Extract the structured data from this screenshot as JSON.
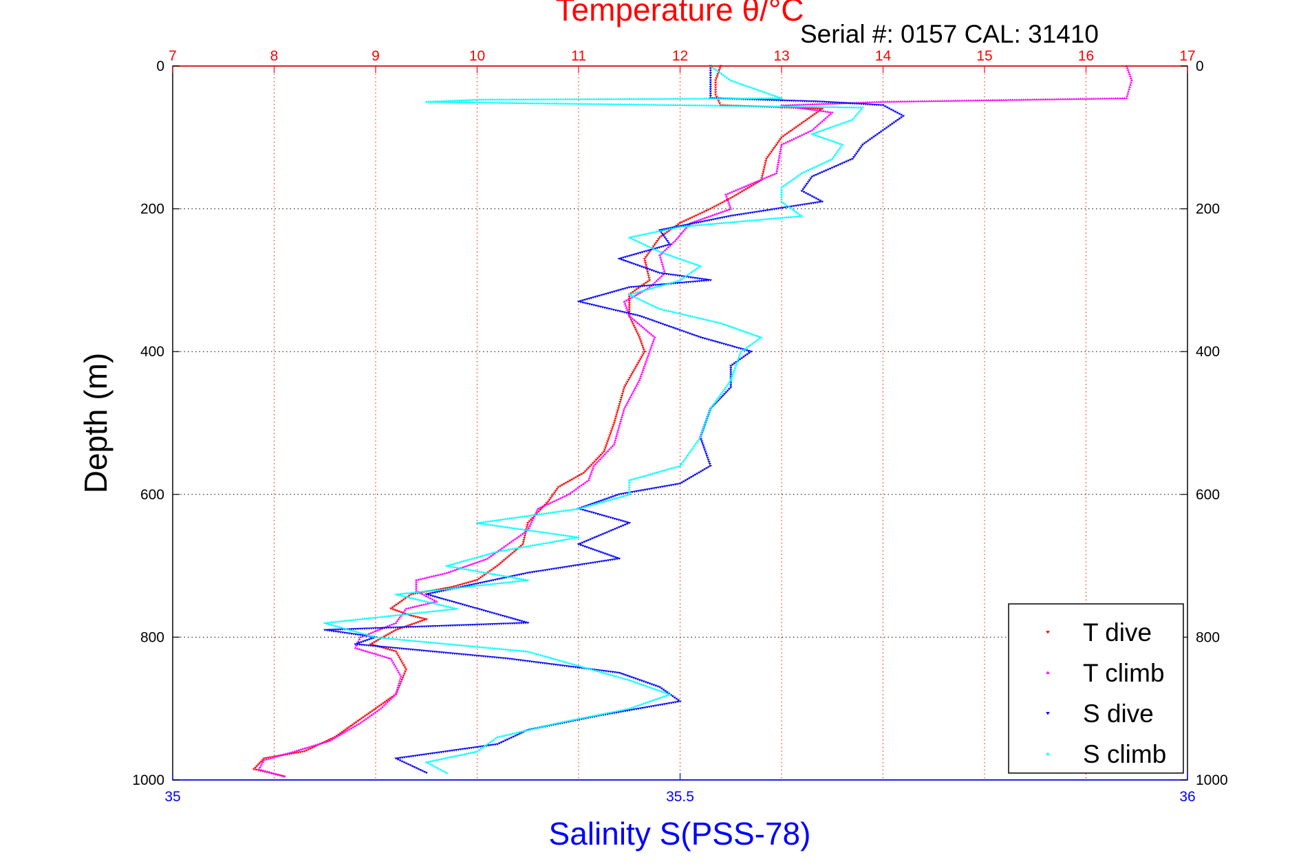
{
  "chart_data": {
    "type": "scatter",
    "title": "Temperature θ/°C",
    "subtitle": "Serial #: 0157  CAL: 31410",
    "ylabel": "Depth (m)",
    "xlabel": "Salinity S(PSS-78)",
    "y_axis": {
      "range": [
        0,
        1000
      ],
      "reversed": true,
      "ticks": [
        0,
        200,
        400,
        600,
        800,
        1000
      ],
      "tick_labels": [
        "0",
        "200",
        "400",
        "600",
        "800",
        "1000"
      ]
    },
    "temperature_axis": {
      "position": "top",
      "range": [
        7,
        17
      ],
      "ticks": [
        7,
        8,
        9,
        10,
        11,
        12,
        13,
        14,
        15,
        16,
        17
      ],
      "tick_labels": [
        "7",
        "8",
        "9",
        "10",
        "11",
        "12",
        "13",
        "14",
        "15",
        "16",
        "17"
      ],
      "color": "#ff0000",
      "grid": true
    },
    "salinity_axis": {
      "position": "bottom",
      "range": [
        35,
        36
      ],
      "ticks": [
        35,
        35.5,
        36
      ],
      "tick_labels": [
        "35",
        "35.5",
        "36"
      ],
      "color": "#0000ff"
    },
    "legend": {
      "placement": "bottom-right"
    },
    "series": [
      {
        "name": "T dive",
        "axis": "temperature",
        "color": "#ff0000",
        "marker": "triangle-down",
        "points": [
          [
            12.4,
            0
          ],
          [
            12.35,
            20
          ],
          [
            12.35,
            40
          ],
          [
            12.4,
            55
          ],
          [
            13.4,
            60
          ],
          [
            13.2,
            80
          ],
          [
            13.0,
            100
          ],
          [
            12.85,
            130
          ],
          [
            12.8,
            160
          ],
          [
            12.5,
            185
          ],
          [
            12.3,
            200
          ],
          [
            12.0,
            220
          ],
          [
            11.8,
            240
          ],
          [
            11.65,
            270
          ],
          [
            11.7,
            300
          ],
          [
            11.5,
            320
          ],
          [
            11.5,
            350
          ],
          [
            11.6,
            380
          ],
          [
            11.65,
            400
          ],
          [
            11.45,
            450
          ],
          [
            11.35,
            500
          ],
          [
            11.25,
            540
          ],
          [
            11.05,
            570
          ],
          [
            10.8,
            590
          ],
          [
            10.7,
            610
          ],
          [
            10.5,
            640
          ],
          [
            10.45,
            670
          ],
          [
            10.2,
            700
          ],
          [
            10.0,
            720
          ],
          [
            9.75,
            730
          ],
          [
            9.35,
            740
          ],
          [
            9.15,
            760
          ],
          [
            9.35,
            770
          ],
          [
            9.5,
            775
          ],
          [
            9.2,
            790
          ],
          [
            8.95,
            810
          ],
          [
            9.2,
            820
          ],
          [
            9.3,
            845
          ],
          [
            9.2,
            880
          ],
          [
            8.95,
            905
          ],
          [
            8.6,
            940
          ],
          [
            8.3,
            960
          ],
          [
            7.9,
            970
          ],
          [
            7.8,
            985
          ],
          [
            8.1,
            995
          ]
        ]
      },
      {
        "name": "T climb",
        "axis": "temperature",
        "color": "#ff00ff",
        "marker": "triangle-up",
        "points": [
          [
            16.4,
            0
          ],
          [
            16.45,
            20
          ],
          [
            16.4,
            45
          ],
          [
            14.0,
            50
          ],
          [
            13.0,
            55
          ],
          [
            13.5,
            65
          ],
          [
            13.3,
            90
          ],
          [
            13.0,
            110
          ],
          [
            12.95,
            150
          ],
          [
            12.45,
            180
          ],
          [
            12.5,
            200
          ],
          [
            12.1,
            220
          ],
          [
            11.95,
            245
          ],
          [
            11.8,
            265
          ],
          [
            11.85,
            290
          ],
          [
            11.7,
            310
          ],
          [
            11.45,
            330
          ],
          [
            11.5,
            350
          ],
          [
            11.75,
            380
          ],
          [
            11.7,
            400
          ],
          [
            11.6,
            440
          ],
          [
            11.45,
            480
          ],
          [
            11.35,
            530
          ],
          [
            11.15,
            560
          ],
          [
            11.1,
            580
          ],
          [
            10.9,
            600
          ],
          [
            10.6,
            620
          ],
          [
            10.5,
            650
          ],
          [
            10.3,
            670
          ],
          [
            10.1,
            690
          ],
          [
            9.7,
            710
          ],
          [
            9.4,
            720
          ],
          [
            9.4,
            735
          ],
          [
            9.6,
            750
          ],
          [
            9.3,
            760
          ],
          [
            9.2,
            780
          ],
          [
            8.85,
            800
          ],
          [
            8.8,
            815
          ],
          [
            9.15,
            830
          ],
          [
            9.25,
            855
          ],
          [
            9.2,
            880
          ],
          [
            9.05,
            900
          ],
          [
            8.85,
            920
          ],
          [
            8.55,
            945
          ],
          [
            8.2,
            960
          ],
          [
            7.9,
            972
          ],
          [
            7.85,
            985
          ],
          [
            8.1,
            995
          ]
        ]
      },
      {
        "name": "S dive",
        "axis": "salinity",
        "color": "#0000ff",
        "marker": "triangle-down",
        "points": [
          [
            35.53,
            0
          ],
          [
            35.53,
            20
          ],
          [
            35.53,
            45
          ],
          [
            35.64,
            50
          ],
          [
            35.7,
            55
          ],
          [
            35.72,
            70
          ],
          [
            35.7,
            90
          ],
          [
            35.68,
            110
          ],
          [
            35.67,
            130
          ],
          [
            35.63,
            155
          ],
          [
            35.62,
            175
          ],
          [
            35.64,
            190
          ],
          [
            35.55,
            210
          ],
          [
            35.48,
            230
          ],
          [
            35.49,
            250
          ],
          [
            35.44,
            270
          ],
          [
            35.48,
            290
          ],
          [
            35.53,
            300
          ],
          [
            35.45,
            310
          ],
          [
            35.4,
            330
          ],
          [
            35.46,
            350
          ],
          [
            35.52,
            380
          ],
          [
            35.57,
            400
          ],
          [
            35.55,
            420
          ],
          [
            35.55,
            450
          ],
          [
            35.53,
            480
          ],
          [
            35.52,
            520
          ],
          [
            35.53,
            560
          ],
          [
            35.5,
            585
          ],
          [
            35.44,
            600
          ],
          [
            35.4,
            620
          ],
          [
            35.45,
            640
          ],
          [
            35.4,
            670
          ],
          [
            35.44,
            690
          ],
          [
            35.35,
            710
          ],
          [
            35.25,
            740
          ],
          [
            35.3,
            760
          ],
          [
            35.35,
            780
          ],
          [
            35.15,
            790
          ],
          [
            35.2,
            800
          ],
          [
            35.18,
            810
          ],
          [
            35.33,
            830
          ],
          [
            35.44,
            850
          ],
          [
            35.48,
            870
          ],
          [
            35.5,
            890
          ],
          [
            35.42,
            910
          ],
          [
            35.35,
            930
          ],
          [
            35.32,
            950
          ],
          [
            35.22,
            970
          ],
          [
            35.25,
            990
          ]
        ]
      },
      {
        "name": "S climb",
        "axis": "salinity",
        "color": "#00ffff",
        "marker": "triangle-up",
        "points": [
          [
            35.53,
            0
          ],
          [
            35.55,
            20
          ],
          [
            35.6,
            45
          ],
          [
            35.3,
            47
          ],
          [
            35.25,
            50
          ],
          [
            35.68,
            58
          ],
          [
            35.67,
            75
          ],
          [
            35.63,
            95
          ],
          [
            35.66,
            110
          ],
          [
            35.65,
            130
          ],
          [
            35.62,
            150
          ],
          [
            35.6,
            170
          ],
          [
            35.6,
            190
          ],
          [
            35.62,
            210
          ],
          [
            35.5,
            225
          ],
          [
            35.45,
            240
          ],
          [
            35.48,
            260
          ],
          [
            35.52,
            280
          ],
          [
            35.5,
            300
          ],
          [
            35.45,
            320
          ],
          [
            35.48,
            340
          ],
          [
            35.54,
            360
          ],
          [
            35.58,
            380
          ],
          [
            35.56,
            400
          ],
          [
            35.55,
            440
          ],
          [
            35.53,
            480
          ],
          [
            35.52,
            520
          ],
          [
            35.5,
            560
          ],
          [
            35.45,
            580
          ],
          [
            35.45,
            600
          ],
          [
            35.4,
            620
          ],
          [
            35.3,
            640
          ],
          [
            35.4,
            660
          ],
          [
            35.32,
            680
          ],
          [
            35.27,
            700
          ],
          [
            35.35,
            720
          ],
          [
            35.22,
            740
          ],
          [
            35.28,
            760
          ],
          [
            35.15,
            780
          ],
          [
            35.2,
            800
          ],
          [
            35.35,
            820
          ],
          [
            35.4,
            840
          ],
          [
            35.45,
            860
          ],
          [
            35.49,
            880
          ],
          [
            35.45,
            900
          ],
          [
            35.38,
            920
          ],
          [
            35.32,
            940
          ],
          [
            35.3,
            960
          ],
          [
            35.25,
            975
          ],
          [
            35.27,
            990
          ]
        ]
      }
    ]
  }
}
